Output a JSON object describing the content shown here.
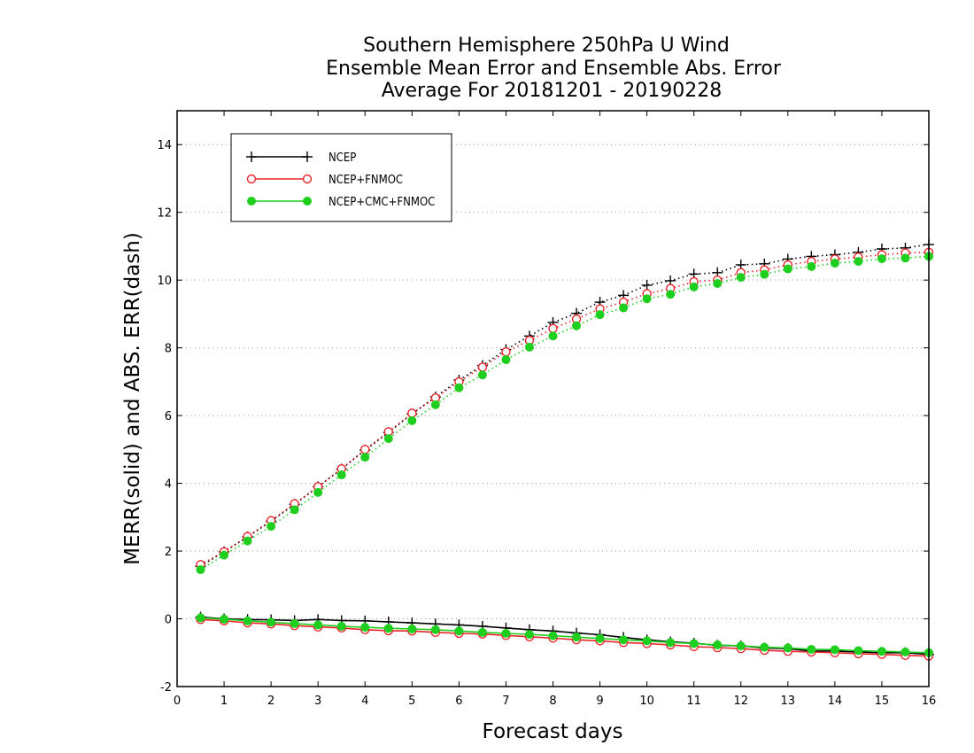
{
  "chart_data": {
    "type": "line",
    "title": [
      "Southern Hemisphere 250hPa U Wind",
      "Ensemble Mean Error and Ensemble Abs. Error",
      "Average For 20181201 - 20190228"
    ],
    "xlabel": "Forecast days",
    "ylabel": "MERR(solid) and ABS. ERR(dash)",
    "xlim": [
      0,
      16
    ],
    "ylim": [
      -2,
      15
    ],
    "xticks": [
      "0",
      "1",
      "2",
      "3",
      "4",
      "5",
      "6",
      "7",
      "8",
      "9",
      "10",
      "11",
      "12",
      "13",
      "14",
      "15",
      "16"
    ],
    "yticks": [
      "-2",
      "0",
      "2",
      "4",
      "6",
      "8",
      "10",
      "12",
      "14"
    ],
    "grid": true,
    "legend_position": "top-left",
    "x": [
      0.5,
      1,
      1.5,
      2,
      2.5,
      3,
      3.5,
      4,
      4.5,
      5,
      5.5,
      6,
      6.5,
      7,
      7.5,
      8,
      8.5,
      9,
      9.5,
      10,
      10.5,
      11,
      11.5,
      12,
      12.5,
      13,
      13.5,
      14,
      14.5,
      15,
      15.5,
      16
    ],
    "series": [
      {
        "name": "NCEP",
        "color": "#000000",
        "marker": "plus",
        "merr": [
          0.05,
          0.0,
          -0.02,
          -0.03,
          -0.05,
          -0.02,
          -0.05,
          -0.06,
          -0.09,
          -0.12,
          -0.15,
          -0.18,
          -0.22,
          -0.27,
          -0.32,
          -0.36,
          -0.42,
          -0.47,
          -0.55,
          -0.62,
          -0.68,
          -0.72,
          -0.78,
          -0.8,
          -0.86,
          -0.88,
          -0.95,
          -0.95,
          -0.98,
          -1.0,
          -1.0,
          -1.05
        ],
        "abs_err": [
          1.55,
          1.98,
          2.42,
          2.88,
          3.38,
          3.9,
          4.42,
          4.98,
          5.5,
          6.05,
          6.55,
          7.05,
          7.48,
          7.95,
          8.35,
          8.75,
          9.02,
          9.35,
          9.55,
          9.85,
          9.98,
          10.18,
          10.22,
          10.45,
          10.48,
          10.62,
          10.7,
          10.75,
          10.82,
          10.92,
          10.95,
          11.05
        ]
      },
      {
        "name": "NCEP+FNMOC",
        "color": "#e8262b",
        "marker": "open-circle",
        "merr": [
          -0.02,
          -0.06,
          -0.12,
          -0.15,
          -0.2,
          -0.24,
          -0.27,
          -0.32,
          -0.35,
          -0.36,
          -0.4,
          -0.43,
          -0.45,
          -0.49,
          -0.53,
          -0.57,
          -0.62,
          -0.65,
          -0.7,
          -0.73,
          -0.77,
          -0.82,
          -0.85,
          -0.88,
          -0.93,
          -0.96,
          -0.98,
          -1.0,
          -1.03,
          -1.05,
          -1.08,
          -1.1
        ],
        "abs_err": [
          1.6,
          1.98,
          2.43,
          2.9,
          3.4,
          3.9,
          4.43,
          5.0,
          5.52,
          6.07,
          6.52,
          7.0,
          7.43,
          7.88,
          8.22,
          8.57,
          8.85,
          9.15,
          9.35,
          9.6,
          9.75,
          9.95,
          10.0,
          10.22,
          10.3,
          10.45,
          10.55,
          10.62,
          10.68,
          10.75,
          10.8,
          10.82
        ]
      },
      {
        "name": "NCEP+CMC+FNMOC",
        "color": "#1fcf1f",
        "marker": "filled-circle",
        "merr": [
          0.03,
          -0.01,
          -0.06,
          -0.1,
          -0.14,
          -0.18,
          -0.22,
          -0.25,
          -0.28,
          -0.3,
          -0.32,
          -0.36,
          -0.4,
          -0.43,
          -0.46,
          -0.5,
          -0.54,
          -0.58,
          -0.62,
          -0.65,
          -0.7,
          -0.73,
          -0.77,
          -0.8,
          -0.84,
          -0.86,
          -0.9,
          -0.91,
          -0.94,
          -0.96,
          -0.98,
          -1.0
        ],
        "abs_err": [
          1.45,
          1.88,
          2.3,
          2.73,
          3.22,
          3.73,
          4.25,
          4.77,
          5.32,
          5.85,
          6.32,
          6.82,
          7.2,
          7.65,
          8.02,
          8.35,
          8.65,
          8.98,
          9.18,
          9.45,
          9.58,
          9.8,
          9.9,
          10.08,
          10.17,
          10.33,
          10.4,
          10.5,
          10.55,
          10.63,
          10.65,
          10.7
        ]
      }
    ]
  }
}
